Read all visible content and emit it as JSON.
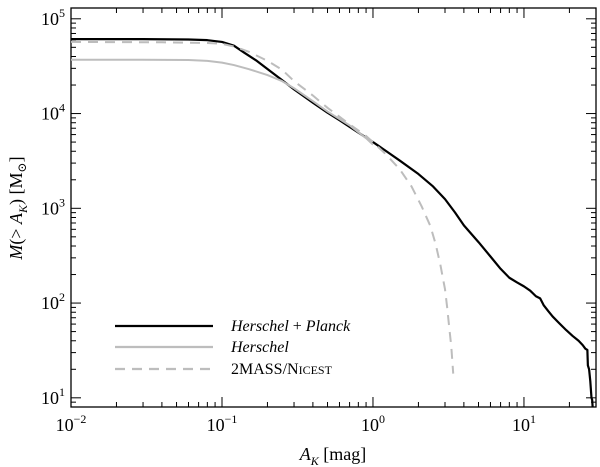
{
  "chart_data": {
    "type": "line",
    "xlabel": "A_K [mag]",
    "ylabel": "M(> A_K) [M_sun]",
    "xscale": "log",
    "yscale": "log",
    "xlim": [
      0.01,
      30
    ],
    "ylim": [
      8,
      130000
    ],
    "grid": false,
    "legend_position": "bottom-left",
    "x_ticks": [
      {
        "value": 0.01,
        "mantissa": "10",
        "exponent": "−2"
      },
      {
        "value": 0.1,
        "mantissa": "10",
        "exponent": "−1"
      },
      {
        "value": 1,
        "mantissa": "10",
        "exponent": "0"
      },
      {
        "value": 10,
        "mantissa": "10",
        "exponent": "1"
      }
    ],
    "y_ticks": [
      {
        "value": 10,
        "mantissa": "10",
        "exponent": "1"
      },
      {
        "value": 100,
        "mantissa": "10",
        "exponent": "2"
      },
      {
        "value": 1000,
        "mantissa": "10",
        "exponent": "3"
      },
      {
        "value": 10000,
        "mantissa": "10",
        "exponent": "4"
      },
      {
        "value": 100000,
        "mantissa": "10",
        "exponent": "5"
      }
    ],
    "series": [
      {
        "name": "Herschel + Planck",
        "color": "#000000",
        "dash": "solid",
        "points": [
          [
            0.01,
            61000
          ],
          [
            0.03,
            61000
          ],
          [
            0.06,
            60500
          ],
          [
            0.08,
            59500
          ],
          [
            0.1,
            57000
          ],
          [
            0.12,
            52000
          ],
          [
            0.14,
            44000
          ],
          [
            0.17,
            36000
          ],
          [
            0.2,
            29500
          ],
          [
            0.25,
            22500
          ],
          [
            0.3,
            18000
          ],
          [
            0.4,
            13000
          ],
          [
            0.5,
            10200
          ],
          [
            0.6,
            8500
          ],
          [
            0.8,
            6300
          ],
          [
            1.0,
            5000
          ],
          [
            1.2,
            4100
          ],
          [
            1.5,
            3200
          ],
          [
            2.0,
            2300
          ],
          [
            2.5,
            1700
          ],
          [
            3.0,
            1250
          ],
          [
            3.5,
            900
          ],
          [
            4.0,
            660
          ],
          [
            5.0,
            440
          ],
          [
            6.0,
            310
          ],
          [
            7.0,
            230
          ],
          [
            8.0,
            185
          ],
          [
            9.0,
            165
          ],
          [
            10.0,
            150
          ],
          [
            11.0,
            135
          ],
          [
            12.0,
            118
          ],
          [
            12.8,
            112
          ],
          [
            13.5,
            95
          ],
          [
            14.5,
            82
          ],
          [
            15.5,
            72
          ],
          [
            17.0,
            62
          ],
          [
            19.0,
            52
          ],
          [
            21.0,
            45
          ],
          [
            23.0,
            40
          ],
          [
            24.5,
            36
          ],
          [
            25.5,
            33
          ],
          [
            26.3,
            32
          ],
          [
            26.5,
            22
          ],
          [
            27.0,
            20
          ],
          [
            27.5,
            15
          ],
          [
            28.0,
            10
          ],
          [
            28.3,
            9.5
          ],
          [
            28.5,
            8
          ]
        ]
      },
      {
        "name": "Herschel",
        "color": "#bdbdbd",
        "dash": "solid",
        "points": [
          [
            0.01,
            37000
          ],
          [
            0.03,
            37000
          ],
          [
            0.06,
            36700
          ],
          [
            0.08,
            36000
          ],
          [
            0.1,
            34500
          ],
          [
            0.12,
            32500
          ],
          [
            0.15,
            29500
          ],
          [
            0.2,
            25500
          ],
          [
            0.25,
            22000
          ],
          [
            0.3,
            18500
          ],
          [
            0.4,
            13500
          ],
          [
            0.5,
            10500
          ],
          [
            0.7,
            7500
          ],
          [
            0.9,
            5500
          ],
          [
            1.0,
            4700
          ]
        ]
      },
      {
        "name": "2MASS/NICEST",
        "color": "#bdbdbd",
        "dash": "dashed",
        "points": [
          [
            0.01,
            57000
          ],
          [
            0.04,
            56500
          ],
          [
            0.08,
            55500
          ],
          [
            0.1,
            54500
          ],
          [
            0.12,
            51000
          ],
          [
            0.15,
            45000
          ],
          [
            0.2,
            36000
          ],
          [
            0.25,
            29000
          ],
          [
            0.3,
            22000
          ],
          [
            0.4,
            15500
          ],
          [
            0.5,
            11500
          ],
          [
            0.7,
            7700
          ],
          [
            0.9,
            5800
          ],
          [
            1.0,
            5000
          ],
          [
            1.2,
            3800
          ],
          [
            1.5,
            2600
          ],
          [
            1.8,
            1700
          ],
          [
            2.1,
            1050
          ],
          [
            2.4,
            650
          ],
          [
            2.6,
            420
          ],
          [
            2.8,
            250
          ],
          [
            3.0,
            140
          ],
          [
            3.1,
            90
          ],
          [
            3.2,
            55
          ],
          [
            3.3,
            35
          ],
          [
            3.35,
            25
          ],
          [
            3.4,
            18
          ]
        ]
      }
    ]
  }
}
